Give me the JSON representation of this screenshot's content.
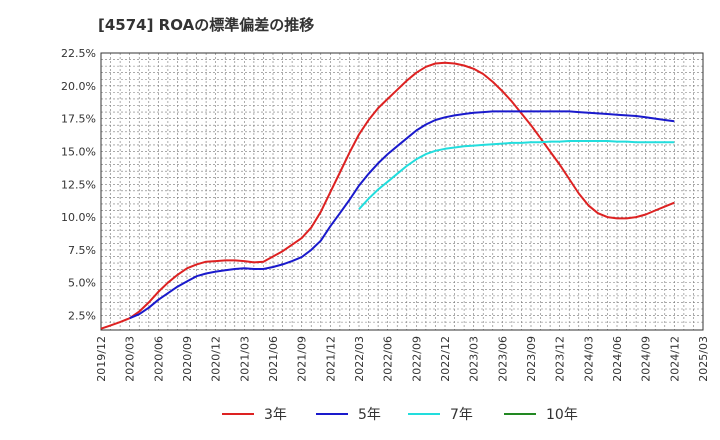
{
  "chart_data": {
    "type": "line",
    "title": "[4574]  ROAの標準偏差の推移",
    "xlabel": "",
    "ylabel": "",
    "x_ticks": [
      "2019/12",
      "2020/03",
      "2020/06",
      "2020/09",
      "2020/12",
      "2021/03",
      "2021/06",
      "2021/09",
      "2021/12",
      "2022/03",
      "2022/06",
      "2022/09",
      "2022/12",
      "2023/03",
      "2023/06",
      "2023/09",
      "2023/12",
      "2024/03",
      "2024/06",
      "2024/09",
      "2024/12",
      "2025/03"
    ],
    "y_ticks": [
      "2.5%",
      "5.0%",
      "7.5%",
      "10.0%",
      "12.5%",
      "15.0%",
      "17.5%",
      "20.0%",
      "22.5%"
    ],
    "ylim": [
      1.4,
      22.5
    ],
    "grid": true,
    "legend_position": "bottom",
    "series": [
      {
        "name": "3年",
        "color": "#dd2222",
        "x": [
          "2019/12",
          "2020/01",
          "2020/02",
          "2020/03",
          "2020/04",
          "2020/05",
          "2020/06",
          "2020/07",
          "2020/08",
          "2020/09",
          "2020/10",
          "2020/11",
          "2020/12",
          "2021/01",
          "2021/02",
          "2021/03",
          "2021/04",
          "2021/05",
          "2021/06",
          "2021/07",
          "2021/08",
          "2021/09",
          "2021/10",
          "2021/11",
          "2021/12",
          "2022/01",
          "2022/02",
          "2022/03",
          "2022/04",
          "2022/05",
          "2022/06",
          "2022/07",
          "2022/08",
          "2022/09",
          "2022/10",
          "2022/11",
          "2022/12",
          "2023/01",
          "2023/02",
          "2023/03",
          "2023/04",
          "2023/05",
          "2023/06",
          "2023/07",
          "2023/08",
          "2023/09",
          "2023/10",
          "2023/11",
          "2023/12",
          "2024/01",
          "2024/02",
          "2024/03",
          "2024/04",
          "2024/05",
          "2024/06",
          "2024/07",
          "2024/08",
          "2024/09",
          "2024/10",
          "2024/11",
          "2024/12"
        ],
        "values": [
          1.5,
          1.75,
          2.0,
          2.3,
          2.8,
          3.5,
          4.3,
          5.0,
          5.6,
          6.1,
          6.4,
          6.6,
          6.65,
          6.7,
          6.7,
          6.65,
          6.55,
          6.6,
          7.0,
          7.4,
          7.9,
          8.4,
          9.2,
          10.4,
          11.9,
          13.4,
          14.9,
          16.3,
          17.4,
          18.3,
          19.0,
          19.7,
          20.4,
          21.0,
          21.45,
          21.7,
          21.75,
          21.7,
          21.55,
          21.3,
          20.9,
          20.3,
          19.6,
          18.8,
          17.9,
          17.0,
          16.0,
          15.0,
          14.0,
          12.9,
          11.8,
          10.9,
          10.3,
          10.0,
          9.9,
          9.9,
          10.0,
          10.2,
          10.5,
          10.8,
          11.1
        ]
      },
      {
        "name": "5年",
        "color": "#1a1acc",
        "x": [
          "2020/03",
          "2020/04",
          "2020/05",
          "2020/06",
          "2020/07",
          "2020/08",
          "2020/09",
          "2020/10",
          "2020/11",
          "2020/12",
          "2021/01",
          "2021/02",
          "2021/03",
          "2021/04",
          "2021/05",
          "2021/06",
          "2021/07",
          "2021/08",
          "2021/09",
          "2021/10",
          "2021/11",
          "2021/12",
          "2022/01",
          "2022/02",
          "2022/03",
          "2022/04",
          "2022/05",
          "2022/06",
          "2022/07",
          "2022/08",
          "2022/09",
          "2022/10",
          "2022/11",
          "2022/12",
          "2023/01",
          "2023/02",
          "2023/03",
          "2023/04",
          "2023/05",
          "2023/06",
          "2023/07",
          "2023/08",
          "2023/09",
          "2023/10",
          "2023/11",
          "2023/12",
          "2024/01",
          "2024/02",
          "2024/03",
          "2024/04",
          "2024/05",
          "2024/06",
          "2024/07",
          "2024/08",
          "2024/09",
          "2024/10",
          "2024/11",
          "2024/12"
        ],
        "values": [
          2.3,
          2.6,
          3.1,
          3.7,
          4.2,
          4.7,
          5.1,
          5.5,
          5.7,
          5.85,
          5.95,
          6.05,
          6.1,
          6.05,
          6.05,
          6.2,
          6.4,
          6.65,
          6.95,
          7.5,
          8.2,
          9.3,
          10.3,
          11.3,
          12.4,
          13.3,
          14.1,
          14.8,
          15.4,
          16.0,
          16.6,
          17.05,
          17.4,
          17.6,
          17.75,
          17.85,
          17.95,
          18.0,
          18.05,
          18.05,
          18.05,
          18.05,
          18.05,
          18.05,
          18.05,
          18.05,
          18.05,
          18.0,
          17.95,
          17.9,
          17.85,
          17.8,
          17.75,
          17.7,
          17.6,
          17.5,
          17.4,
          17.3
        ]
      },
      {
        "name": "7年",
        "color": "#22dddd",
        "x": [
          "2022/03",
          "2022/04",
          "2022/05",
          "2022/06",
          "2022/07",
          "2022/08",
          "2022/09",
          "2022/10",
          "2022/11",
          "2022/12",
          "2023/01",
          "2023/02",
          "2023/03",
          "2023/04",
          "2023/05",
          "2023/06",
          "2023/07",
          "2023/08",
          "2023/09",
          "2023/10",
          "2023/11",
          "2023/12",
          "2024/01",
          "2024/02",
          "2024/03",
          "2024/04",
          "2024/05",
          "2024/06",
          "2024/07",
          "2024/08",
          "2024/09",
          "2024/10",
          "2024/11",
          "2024/12"
        ],
        "values": [
          10.6,
          11.4,
          12.1,
          12.7,
          13.3,
          13.9,
          14.4,
          14.8,
          15.05,
          15.2,
          15.3,
          15.4,
          15.45,
          15.5,
          15.55,
          15.6,
          15.65,
          15.65,
          15.7,
          15.7,
          15.75,
          15.75,
          15.8,
          15.8,
          15.8,
          15.8,
          15.8,
          15.75,
          15.75,
          15.7,
          15.7,
          15.7,
          15.7,
          15.7
        ]
      },
      {
        "name": "10年",
        "color": "#228822",
        "x": [],
        "values": []
      }
    ]
  }
}
